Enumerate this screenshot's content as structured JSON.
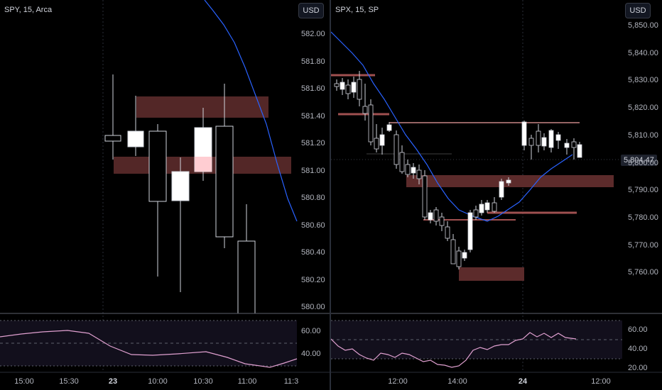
{
  "left": {
    "symbol": "SPY, 15, Arca",
    "currency": "USD",
    "price_ticks": [
      "582.00",
      "581.80",
      "581.60",
      "581.40",
      "581.20",
      "581.00",
      "580.80",
      "580.60",
      "580.40",
      "580.20",
      "580.00"
    ],
    "rsi_ticks": [
      "60.00",
      "40.00"
    ],
    "time_ticks": [
      "15:00",
      "15:30",
      "23",
      "10:00",
      "10:30",
      "11:00",
      "11:3"
    ]
  },
  "right": {
    "symbol": "SPX, 15, SP",
    "currency": "USD",
    "price_ticks": [
      "5,850.00",
      "5,840.00",
      "5,830.00",
      "5,820.00",
      "5,810.00",
      "5,800.00",
      "5,790.00",
      "5,780.00",
      "5,770.00",
      "5,760.00"
    ],
    "last_price": "5,804.47",
    "rsi_ticks": [
      "60.00",
      "40.00",
      "20.00"
    ],
    "time_ticks": [
      "12:00",
      "14:00",
      "24",
      "12:00"
    ]
  },
  "colors": {
    "zone": "#5c2b2b",
    "ma": "#2962ff",
    "rsi": "#e0a0d0",
    "level": "#f0a0a0"
  }
}
